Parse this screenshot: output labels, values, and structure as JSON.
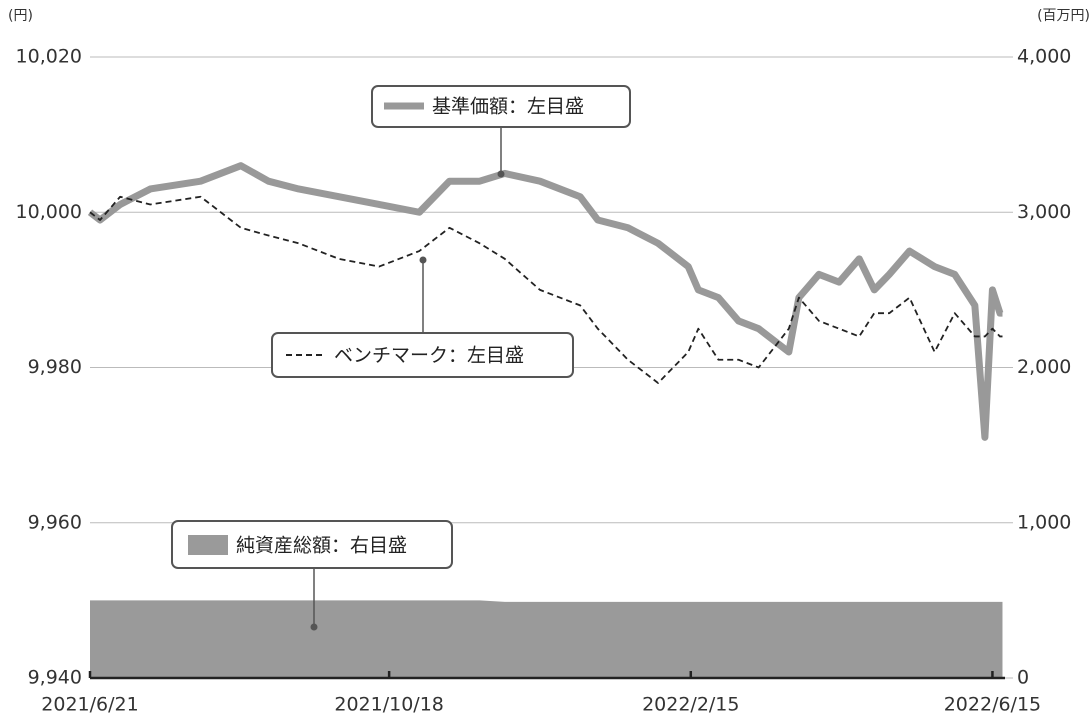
{
  "chart_data": {
    "type": "line",
    "y_unit_label": "(円)",
    "y2_unit_label": "(百万円)",
    "x": [
      "2021-06-21",
      "2021-06-25",
      "2021-07-03",
      "2021-07-15",
      "2021-08-04",
      "2021-08-20",
      "2021-08-31",
      "2021-09-12",
      "2021-09-28",
      "2021-10-14",
      "2021-10-30",
      "2021-11-11",
      "2021-11-23",
      "2021-12-03",
      "2021-12-17",
      "2022-01-02",
      "2022-01-09",
      "2022-01-21",
      "2022-02-02",
      "2022-02-14",
      "2022-02-18",
      "2022-02-26",
      "2022-03-06",
      "2022-03-14",
      "2022-03-26",
      "2022-03-30",
      "2022-04-07",
      "2022-04-15",
      "2022-04-23",
      "2022-04-29",
      "2022-05-05",
      "2022-05-13",
      "2022-05-23",
      "2022-05-31",
      "2022-06-08",
      "2022-06-12",
      "2022-06-15",
      "2022-06-18",
      "2022-06-19"
    ],
    "xlim": [
      "2021-06-21",
      "2022-06-20"
    ],
    "xticks": [
      {
        "value": "2021-06-21",
        "label": "2021/6/21"
      },
      {
        "value": "2021-10-18",
        "label": "2021/10/18"
      },
      {
        "value": "2022-02-15",
        "label": "2022/2/15"
      },
      {
        "value": "2022-06-15",
        "label": "2022/6/15"
      }
    ],
    "ylim": [
      9940,
      10020
    ],
    "yticks": [
      {
        "value": 9940,
        "label": "9,940"
      },
      {
        "value": 9960,
        "label": "9,960"
      },
      {
        "value": 9980,
        "label": "9,980"
      },
      {
        "value": 10000,
        "label": "10,000"
      },
      {
        "value": 10020,
        "label": "10,020"
      }
    ],
    "y2lim": [
      0,
      4000
    ],
    "y2ticks": [
      0,
      {
        "value": 1000,
        "label": "1,000"
      },
      {
        "value": 2000,
        "label": "2,000"
      },
      {
        "value": 3000,
        "label": "3,000"
      },
      {
        "value": 4000,
        "label": "4,000"
      }
    ],
    "grid": true,
    "series": [
      {
        "name": "基準価額：左目盛",
        "color": "#999999",
        "style": "solid",
        "values": [
          10000,
          9999,
          10001,
          10003,
          10004,
          10006,
          10004,
          10003,
          10002,
          10001,
          10000,
          10004,
          10004,
          10005,
          10004,
          10002,
          9999,
          9998,
          9996,
          9993,
          9990,
          9989,
          9986,
          9985,
          9982,
          9989,
          9992,
          9991,
          9994,
          9990,
          9992,
          9995,
          9993,
          9992,
          9988,
          9971,
          9990,
          9987,
          9987
        ]
      },
      {
        "name": "ベンチマーク：左目盛",
        "color": "#222222",
        "style": "dashed",
        "values": [
          10000,
          9999,
          10002,
          10001,
          10002,
          9998,
          9997,
          9996,
          9994,
          9993,
          9995,
          9998,
          9996,
          9994,
          9990,
          9988,
          9985,
          9981,
          9978,
          9982,
          9985,
          9981,
          9981,
          9980,
          9985,
          9989,
          9986,
          9985,
          9984,
          9987,
          9987,
          9989,
          9982,
          9987,
          9984,
          9984,
          9985,
          9984,
          9984
        ]
      },
      {
        "name": "純資産総額：右目盛",
        "color": "#9a9a9a",
        "style": "area",
        "axis": "y2",
        "values": [
          500,
          500,
          500,
          500,
          500,
          500,
          500,
          500,
          500,
          500,
          500,
          500,
          500,
          490,
          490,
          490,
          490,
          490,
          490,
          490,
          490,
          490,
          490,
          490,
          490,
          490,
          490,
          490,
          490,
          490,
          490,
          490,
          490,
          490,
          490,
          490,
          490,
          490,
          490
        ]
      }
    ]
  }
}
